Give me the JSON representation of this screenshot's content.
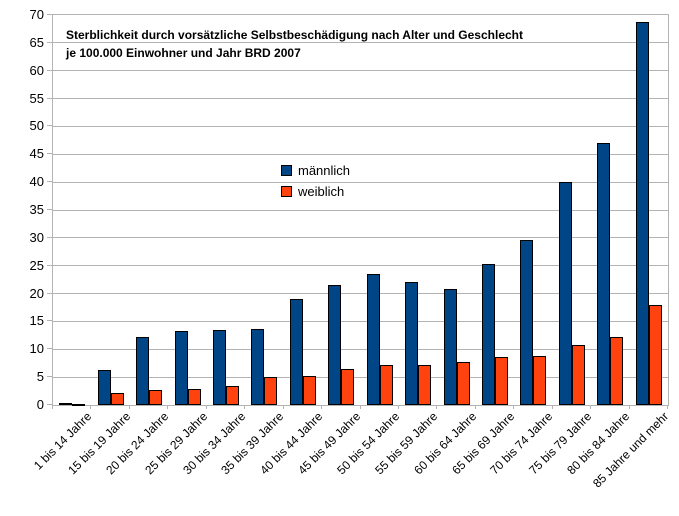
{
  "chart_data": {
    "type": "bar",
    "title_line1": "Sterblichkeit durch vorsätzliche Selbstbeschädigung nach Alter und Geschlecht",
    "title_line2": "je 100.000 Einwohner und Jahr BRD 2007",
    "categories": [
      "1 bis 14 Jahre",
      "15 bis 19 Jahre",
      "20 bis 24 Jahre",
      "25 bis 29 Jahre",
      "30 bis 34 Jahre",
      "35 bis 39 Jahre",
      "40 bis 44 Jahre",
      "45 bis 49 Jahre",
      "50 bis 54 Jahre",
      "55 bis 59 Jahre",
      "60 bis 64 Jahre",
      "65 bis 69 Jahre",
      "70 bis 74 Jahre",
      "75 bis 79 Jahre",
      "80 bis 84 Jahre",
      "85 Jahre und mehr"
    ],
    "series": [
      {
        "name": "männlich",
        "color": "#004586",
        "values": [
          0.3,
          6.3,
          12.2,
          13.3,
          13.5,
          13.6,
          19.1,
          21.5,
          23.5,
          22.0,
          20.9,
          25.3,
          29.6,
          40.0,
          47.0,
          68.8
        ]
      },
      {
        "name": "weiblich",
        "color": "#FF420E",
        "values": [
          0.2,
          2.2,
          2.7,
          2.9,
          3.4,
          5.0,
          5.2,
          6.5,
          7.1,
          7.1,
          7.8,
          8.7,
          8.8,
          10.7,
          12.2,
          17.9
        ]
      }
    ],
    "xlabel": "",
    "ylabel": "",
    "ylim": [
      0,
      70
    ],
    "ytick_step": 5,
    "ytick_labels": [
      "0",
      "5",
      "10",
      "15",
      "20",
      "25",
      "30",
      "35",
      "40",
      "45",
      "50",
      "55",
      "60",
      "65",
      "70"
    ],
    "grid": "horizontal",
    "legend_position": "inside-center-left",
    "style": {
      "grid_color": "#b3b3b3",
      "axis_color": "#b3b3b3",
      "bar_border_color": "#000000",
      "background_color": "#ffffff",
      "text_color": "#000000"
    }
  }
}
